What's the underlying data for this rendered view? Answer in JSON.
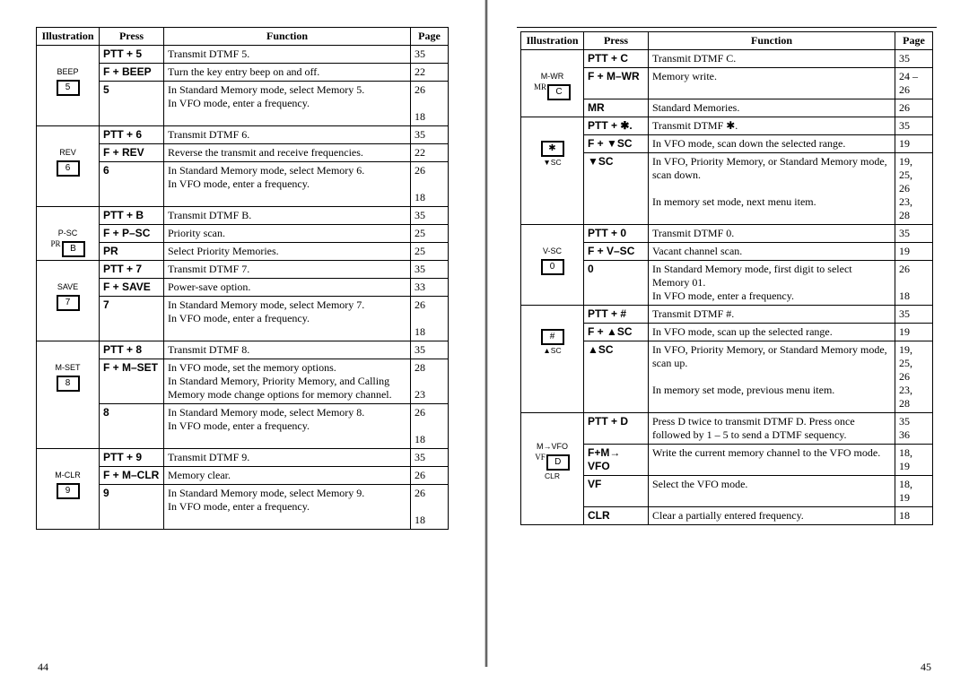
{
  "headers": {
    "illustration": "Illustration",
    "press": "Press",
    "function": "Function",
    "page": "Page"
  },
  "left": {
    "pagenum": "44",
    "groups": [
      {
        "illus": {
          "label": "BEEP",
          "key": "5"
        },
        "rows": [
          {
            "press": "PTT + 5",
            "func": "Transmit DTMF 5.",
            "page": "35"
          },
          {
            "press": "F + BEEP",
            "func": "Turn the key entry beep on and off.",
            "page": "22"
          },
          {
            "press": "5",
            "func": "In Standard Memory mode, select Memory 5.\nIn VFO mode, enter a frequency.",
            "page": "26\n\n18"
          }
        ]
      },
      {
        "illus": {
          "label": "REV",
          "key": "6"
        },
        "rows": [
          {
            "press": "PTT + 6",
            "func": "Transmit DTMF 6.",
            "page": "35"
          },
          {
            "press": "F + REV",
            "func": "Reverse the transmit and receive frequencies.",
            "page": "22"
          },
          {
            "press": "6",
            "func": "In Standard Memory mode, select Memory 6.\nIn VFO mode, enter a frequency.",
            "page": "26\n\n18"
          }
        ]
      },
      {
        "illus": {
          "label": "P-SC",
          "prefix": "PR",
          "key": "B"
        },
        "rows": [
          {
            "press": "PTT + B",
            "func": "Transmit DTMF B.",
            "page": "35"
          },
          {
            "press": "F + P–SC",
            "func": "Priority scan.",
            "page": "25"
          },
          {
            "press": "PR",
            "func": "Select Priority Memories.",
            "page": "25"
          }
        ]
      },
      {
        "illus": {
          "label": "SAVE",
          "key": "7"
        },
        "rows": [
          {
            "press": "PTT + 7",
            "func": "Transmit DTMF 7.",
            "page": "35"
          },
          {
            "press": "F + SAVE",
            "func": "Power-save option.",
            "page": "33"
          },
          {
            "press": "7",
            "func": "In Standard Memory mode, select Memory 7.\nIn VFO mode, enter a frequency.",
            "page": "26\n\n18"
          }
        ]
      },
      {
        "illus": {
          "label": "M-SET",
          "key": "8"
        },
        "rows": [
          {
            "press": "PTT + 8",
            "func": "Transmit DTMF 8.",
            "page": "35"
          },
          {
            "press": "F + M–SET",
            "func": "In VFO mode, set the memory options.\nIn Standard Memory, Priority Memory, and Calling Memory mode change options for memory channel.",
            "page": "28\n\n23"
          },
          {
            "press": "8",
            "func": "In Standard Memory mode, select Memory 8.\nIn VFO mode, enter a frequency.",
            "page": "26\n\n18"
          }
        ]
      },
      {
        "illus": {
          "label": "M-CLR",
          "key": "9"
        },
        "rows": [
          {
            "press": "PTT + 9",
            "func": "Transmit DTMF 9.",
            "page": "35"
          },
          {
            "press": "F + M–CLR",
            "func": "Memory clear.",
            "page": "26"
          },
          {
            "press": "9",
            "func": "In Standard Memory mode, select Memory 9.\nIn VFO mode, enter a frequency.",
            "page": "26\n\n18"
          }
        ]
      }
    ]
  },
  "right": {
    "pagenum": "45",
    "groups": [
      {
        "illus": {
          "label": "M-WR",
          "prefix": "MR",
          "key": "C"
        },
        "rows": [
          {
            "press": "PTT + C",
            "func": "Transmit DTMF C.",
            "page": "35"
          },
          {
            "press": "F + M–WR",
            "func": "Memory write.",
            "page": "24 –\n26"
          },
          {
            "press": "MR",
            "func": "Standard Memories.",
            "page": "26"
          }
        ]
      },
      {
        "illus": {
          "label": "",
          "key": "✱",
          "sub": "▼SC"
        },
        "rows": [
          {
            "press": "PTT + ✱.",
            "func": "Transmit DTMF ✱.",
            "page": "35"
          },
          {
            "press": "F + ▼SC",
            "func": "In VFO mode, scan down the selected range.",
            "page": "19"
          },
          {
            "press": "▼SC",
            "func": "In VFO, Priority Memory, or Standard Memory mode, scan down.\n\nIn memory set mode, next menu item.",
            "page": "19,\n25,\n26\n23,\n28"
          }
        ]
      },
      {
        "illus": {
          "label": "V-SC",
          "key": "0"
        },
        "rows": [
          {
            "press": "PTT + 0",
            "func": "Transmit DTMF 0.",
            "page": "35"
          },
          {
            "press": "F + V–SC",
            "func": "Vacant channel scan.",
            "page": "19"
          },
          {
            "press": "0",
            "func": "In Standard Memory mode, first digit to select Memory 01.\nIn VFO mode, enter a frequency.",
            "page": "26\n\n18"
          }
        ]
      },
      {
        "illus": {
          "label": "",
          "key": "#",
          "sub": "▲SC"
        },
        "rows": [
          {
            "press": "PTT + #",
            "func": "Transmit DTMF #.",
            "page": "35"
          },
          {
            "press": "F + ▲SC",
            "func": "In VFO mode, scan up the selected range.",
            "page": "19"
          },
          {
            "press": "▲SC",
            "func": "In VFO, Priority Memory, or Standard Memory mode, scan up.\n\nIn memory set mode, previous menu item.",
            "page": "19,\n25,\n26\n23,\n28"
          }
        ]
      },
      {
        "illus": {
          "label": "M→VFO",
          "prefix": "VF",
          "key": "D",
          "sub": "CLR"
        },
        "rows": [
          {
            "press": "PTT + D",
            "func": "Press D twice to transmit DTMF D. Press once followed by 1 – 5 to send a DTMF sequency.",
            "page": "35\n36"
          },
          {
            "press": "F+M→ VFO",
            "func": "Write the current memory channel to the VFO mode.",
            "page": "18,\n19"
          },
          {
            "press": "VF",
            "func": "Select the VFO mode.",
            "page": "18,\n19"
          },
          {
            "press": "CLR",
            "func": "Clear a partially entered frequency.",
            "page": "18"
          }
        ]
      }
    ]
  }
}
